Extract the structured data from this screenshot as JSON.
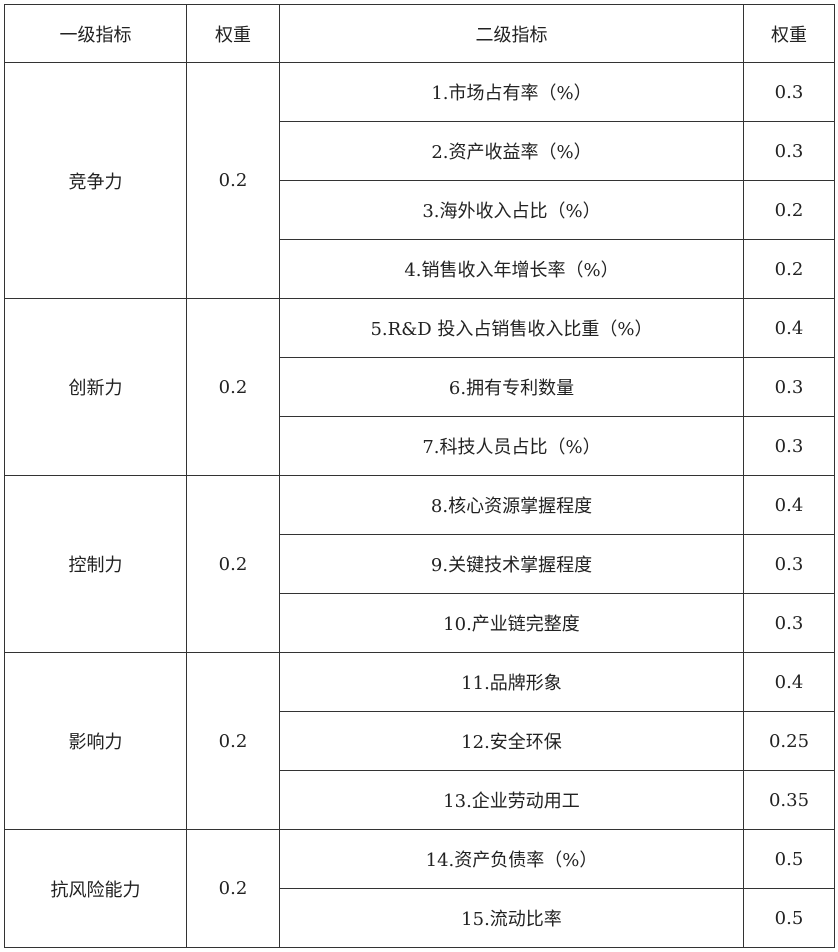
{
  "table": {
    "header": [
      "一级指标",
      "权重",
      "二级指标",
      "权重"
    ],
    "groups": [
      {
        "name": "竞争力",
        "weight": "0.2",
        "items": [
          {
            "label": "1.市场占有率（%）",
            "weight": "0.3"
          },
          {
            "label": "2.资产收益率（%）",
            "weight": "0.3"
          },
          {
            "label": "3.海外收入占比（%）",
            "weight": "0.2"
          },
          {
            "label": "4.销售收入年增长率（%）",
            "weight": "0.2"
          }
        ]
      },
      {
        "name": "创新力",
        "weight": "0.2",
        "items": [
          {
            "label": "5.R&D 投入占销售收入比重（%）",
            "weight": "0.4"
          },
          {
            "label": "6.拥有专利数量",
            "weight": "0.3"
          },
          {
            "label": "7.科技人员占比（%）",
            "weight": "0.3"
          }
        ]
      },
      {
        "name": "控制力",
        "weight": "0.2",
        "items": [
          {
            "label": "8.核心资源掌握程度",
            "weight": "0.4"
          },
          {
            "label": "9.关键技术掌握程度",
            "weight": "0.3"
          },
          {
            "label": "10.产业链完整度",
            "weight": "0.3"
          }
        ]
      },
      {
        "name": "影响力",
        "weight": "0.2",
        "items": [
          {
            "label": "11.品牌形象",
            "weight": "0.4"
          },
          {
            "label": "12.安全环保",
            "weight": "0.25"
          },
          {
            "label": "13.企业劳动用工",
            "weight": "0.35"
          }
        ]
      },
      {
        "name": "抗风险能力",
        "weight": "0.2",
        "items": [
          {
            "label": "14.资产负债率（%）",
            "weight": "0.5"
          },
          {
            "label": "15.流动比率",
            "weight": "0.5"
          }
        ]
      }
    ]
  }
}
